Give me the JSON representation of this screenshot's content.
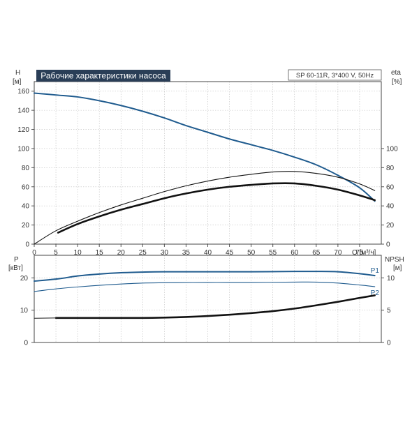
{
  "chart_data": [
    {
      "type": "line",
      "title": "Рабочие характеристики насоса",
      "subtitle": "SP 60-11R, 3*400 V, 50Hz",
      "ylabel_left": "H",
      "ylabel_left_unit": "[м]",
      "ylabel_right": "eta",
      "ylabel_right_unit": "[%]",
      "xlabel": "Q [м³/ч]",
      "xlim": [
        0,
        80
      ],
      "x_ticks": [
        "0",
        "5",
        "10",
        "15",
        "20",
        "25",
        "30",
        "35",
        "40",
        "45",
        "50",
        "55",
        "60",
        "65",
        "70",
        "75"
      ],
      "ylim_left": [
        0,
        170
      ],
      "y_ticks_left": [
        "0",
        "20",
        "40",
        "60",
        "80",
        "100",
        "120",
        "140",
        "160"
      ],
      "ylim_right": [
        0,
        170
      ],
      "y_ticks_right": [
        "0",
        "20",
        "40",
        "60",
        "80",
        "100"
      ],
      "grid": true,
      "series": [
        {
          "axis": "left",
          "color": "#1f5b8e",
          "points": [
            [
              0,
              158
            ],
            [
              5,
              156
            ],
            [
              10,
              154
            ],
            [
              15,
              150
            ],
            [
              20,
              145
            ],
            [
              25,
              139
            ],
            [
              30,
              132
            ],
            [
              35,
              124
            ],
            [
              40,
              117
            ],
            [
              45,
              110
            ],
            [
              50,
              104
            ],
            [
              55,
              98
            ],
            [
              60,
              91
            ],
            [
              65,
              83
            ],
            [
              70,
              72
            ],
            [
              75,
              59
            ],
            [
              78.5,
              45
            ]
          ]
        },
        {
          "axis": "right",
          "color": "#111111",
          "points": [
            [
              0,
              0
            ],
            [
              5,
              14
            ],
            [
              10,
              24
            ],
            [
              15,
              33
            ],
            [
              20,
              41
            ],
            [
              25,
              48
            ],
            [
              30,
              55
            ],
            [
              35,
              61
            ],
            [
              40,
              66
            ],
            [
              45,
              70
            ],
            [
              50,
              73
            ],
            [
              55,
              75.5
            ],
            [
              60,
              76
            ],
            [
              65,
              74
            ],
            [
              70,
              70
            ],
            [
              75,
              63
            ],
            [
              78.5,
              56
            ]
          ]
        },
        {
          "axis": "right",
          "color": "#111111",
          "points": [
            [
              5.5,
              12
            ],
            [
              10,
              21
            ],
            [
              15,
              29
            ],
            [
              20,
              36
            ],
            [
              25,
              42
            ],
            [
              30,
              48
            ],
            [
              35,
              53
            ],
            [
              40,
              57
            ],
            [
              45,
              60
            ],
            [
              50,
              62
            ],
            [
              55,
              63.5
            ],
            [
              60,
              63.5
            ],
            [
              65,
              61
            ],
            [
              70,
              57
            ],
            [
              75,
              51
            ],
            [
              78.5,
              46
            ]
          ]
        }
      ]
    },
    {
      "type": "line",
      "ylabel_left": "P",
      "ylabel_left_unit": "[кВт]",
      "ylabel_right": "NPSH",
      "ylabel_right_unit": "[м]",
      "xlim": [
        0,
        80
      ],
      "ylim_left": [
        0,
        27
      ],
      "y_ticks_left": [
        "0",
        "10",
        "20"
      ],
      "ylim_right": [
        0,
        13.5
      ],
      "y_ticks_right": [
        "0",
        "5",
        "10"
      ],
      "grid": true,
      "series": [
        {
          "name": "P1",
          "axis": "left",
          "color": "#1f5b8e",
          "points": [
            [
              0,
              19
            ],
            [
              5.5,
              19.7
            ],
            [
              10,
              20.6
            ],
            [
              15,
              21.2
            ],
            [
              20,
              21.6
            ],
            [
              25,
              21.8
            ],
            [
              30,
              21.9
            ],
            [
              40,
              21.9
            ],
            [
              50,
              21.9
            ],
            [
              60,
              22
            ],
            [
              65,
              22
            ],
            [
              70,
              21.9
            ],
            [
              75,
              21.3
            ],
            [
              78.5,
              20.7
            ]
          ]
        },
        {
          "name": "P2",
          "axis": "left",
          "color": "#1f5b8e",
          "points": [
            [
              0,
              15.8
            ],
            [
              5,
              16.6
            ],
            [
              10,
              17.2
            ],
            [
              15,
              17.7
            ],
            [
              20,
              18.1
            ],
            [
              25,
              18.4
            ],
            [
              30,
              18.5
            ],
            [
              40,
              18.6
            ],
            [
              50,
              18.6
            ],
            [
              60,
              18.7
            ],
            [
              65,
              18.7
            ],
            [
              70,
              18.4
            ],
            [
              75,
              17.8
            ],
            [
              78.5,
              17.3
            ]
          ]
        },
        {
          "axis": "right",
          "color": "#111111",
          "points": [
            [
              5,
              3.8
            ],
            [
              10,
              3.8
            ],
            [
              15,
              3.8
            ],
            [
              20,
              3.8
            ],
            [
              25,
              3.8
            ],
            [
              30,
              3.85
            ],
            [
              35,
              3.95
            ],
            [
              40,
              4.1
            ],
            [
              45,
              4.3
            ],
            [
              50,
              4.55
            ],
            [
              55,
              4.85
            ],
            [
              60,
              5.25
            ],
            [
              65,
              5.75
            ],
            [
              70,
              6.3
            ],
            [
              75,
              6.9
            ],
            [
              78.5,
              7.3
            ]
          ]
        },
        {
          "axis": "right",
          "color": "#333333",
          "points": [
            [
              0,
              3.75
            ],
            [
              5,
              3.8
            ]
          ]
        }
      ]
    }
  ]
}
